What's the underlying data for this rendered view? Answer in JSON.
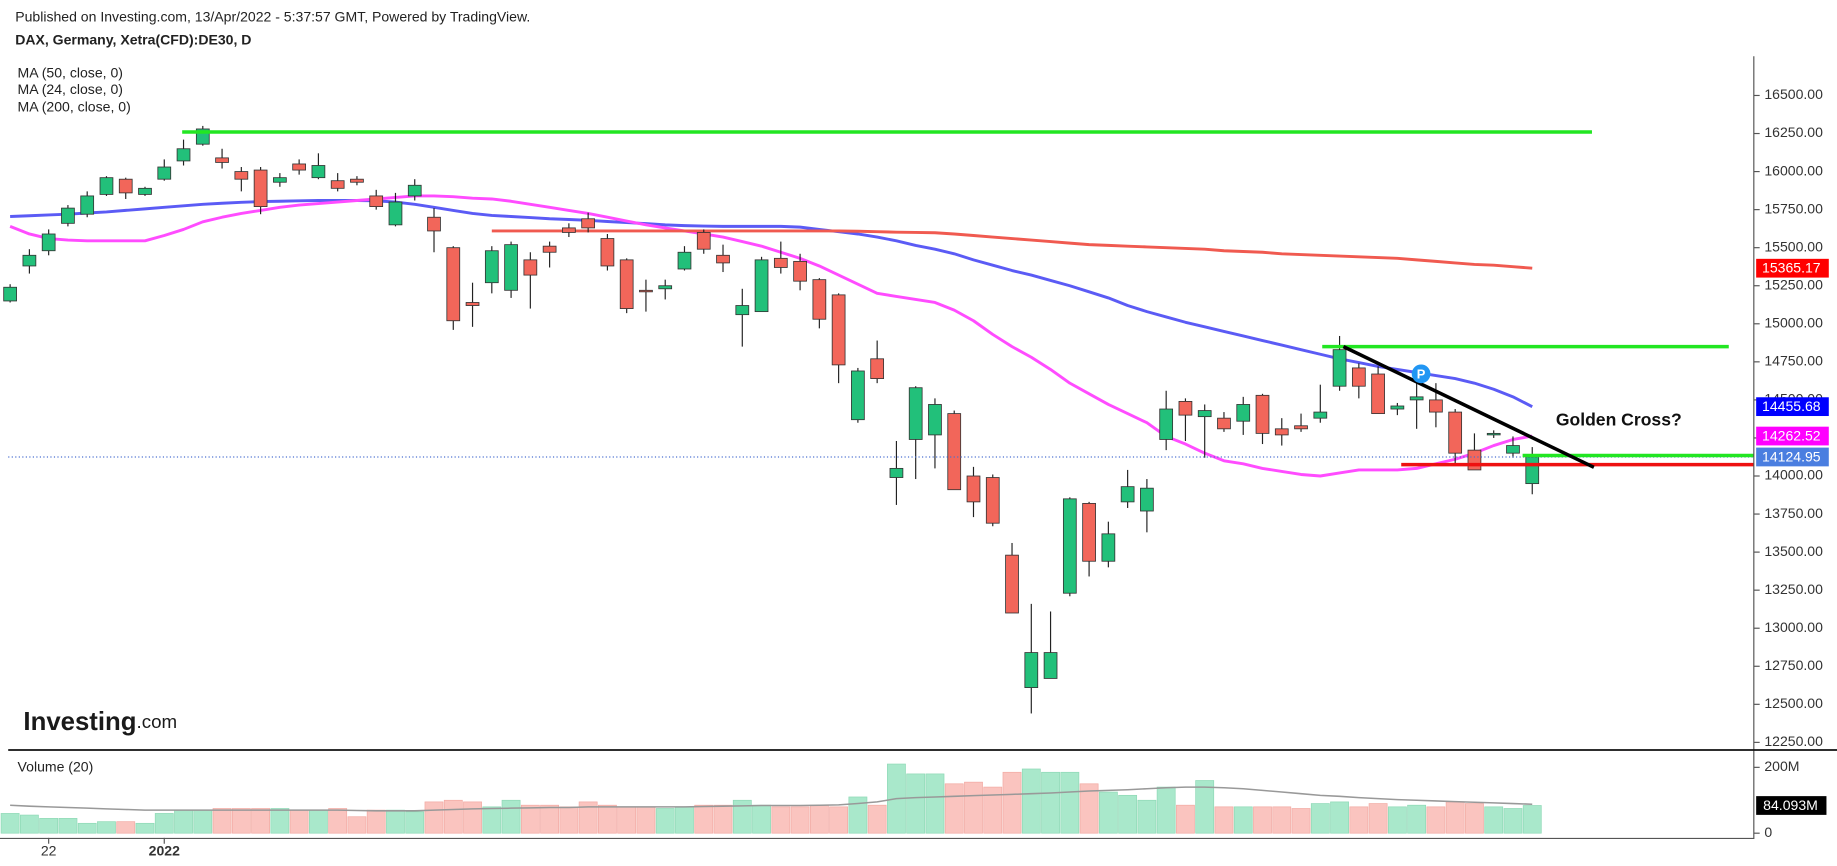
{
  "chart_data": [
    {
      "type": "candlestick",
      "subtitle": "Published on Investing.com, 13/Apr/2022 - 5:37:57 GMT, Powered by TradingView.",
      "title": "DAX, Germany, Xetra(CFD):DE30, D",
      "logo": [
        "Investing",
        ".com"
      ],
      "categories": [
        null,
        null,
        "22",
        null,
        null,
        null,
        null,
        null,
        "2022",
        null,
        null,
        null,
        null,
        null,
        null,
        null,
        null,
        null,
        null,
        null,
        null,
        null,
        null,
        null,
        null,
        null,
        null,
        null,
        null,
        null,
        null,
        null,
        null,
        null,
        null,
        null,
        null,
        null,
        null,
        null,
        null,
        null,
        null,
        null,
        null,
        null,
        null,
        null,
        null,
        null,
        null,
        null,
        null,
        null,
        null,
        null,
        null,
        null,
        null,
        null,
        null,
        null,
        null,
        null,
        null,
        null,
        null,
        null,
        null,
        null,
        null,
        null,
        null,
        null,
        null,
        null,
        null,
        null,
        null,
        null
      ],
      "xlim": [
        -0.1,
        90.5
      ],
      "ylim": [
        12200,
        16750
      ],
      "yticks": [
        {
          "value": 12250,
          "label": "12250.00"
        },
        {
          "value": 12500,
          "label": "12500.00"
        },
        {
          "value": 12750,
          "label": "12750.00"
        },
        {
          "value": 13000,
          "label": "13000.00"
        },
        {
          "value": 13250,
          "label": "13250.00"
        },
        {
          "value": 13500,
          "label": "13500.00"
        },
        {
          "value": 13750,
          "label": "13750.00"
        },
        {
          "value": 14000,
          "label": "14000.00"
        },
        {
          "value": 14250,
          "label": "14250.00"
        },
        {
          "value": 14500,
          "label": "14500.00"
        },
        {
          "value": 14750,
          "label": "14750.00"
        },
        {
          "value": 15000,
          "label": "15000.00"
        },
        {
          "value": 15250,
          "label": "15250.00"
        },
        {
          "value": 15500,
          "label": "15500.00"
        },
        {
          "value": 15750,
          "label": "15750.00"
        },
        {
          "value": 16000,
          "label": "16000.00"
        },
        {
          "value": 16250,
          "label": "16250.00"
        },
        {
          "value": 16500,
          "label": "16500.00"
        }
      ],
      "open": [
        15150,
        15380,
        15480,
        15660,
        15720,
        15850,
        15950,
        15850,
        15950,
        16070,
        16180,
        16090,
        16000,
        16010,
        15930,
        16050,
        15960,
        15940,
        15950,
        15840,
        15650,
        15840,
        15700,
        15500,
        15140,
        15270,
        15220,
        15420,
        15510,
        15630,
        15690,
        15560,
        15420,
        15220,
        15230,
        15360,
        15600,
        15450,
        15060,
        15080,
        15430,
        15410,
        15290,
        15190,
        14370,
        14770,
        13990,
        14240,
        14270,
        14410,
        14000,
        13990,
        13480,
        12610,
        12670,
        13230,
        13820,
        13440,
        13830,
        13770,
        14240,
        14490,
        14390,
        14380,
        14360,
        14530,
        14310,
        14330,
        14380,
        14590,
        14710,
        14670,
        14440,
        14500,
        14500,
        14420,
        14170,
        14270,
        14150,
        13950
      ],
      "high": [
        15260,
        15490,
        15620,
        15780,
        15870,
        15970,
        15960,
        15900,
        16080,
        16210,
        16300,
        16150,
        16030,
        16030,
        15990,
        16080,
        16120,
        15990,
        15970,
        15880,
        15860,
        15950,
        15760,
        15510,
        15270,
        15510,
        15540,
        15470,
        15540,
        15660,
        15730,
        15590,
        15430,
        15290,
        15290,
        15510,
        15620,
        15520,
        15230,
        15440,
        15540,
        15460,
        15300,
        15200,
        14710,
        14890,
        14230,
        14590,
        14510,
        14430,
        14060,
        14010,
        13560,
        13160,
        13110,
        13860,
        13830,
        13700,
        14040,
        13980,
        14560,
        14510,
        14470,
        14420,
        14520,
        14540,
        14380,
        14410,
        14600,
        14920,
        14740,
        14720,
        14480,
        14620,
        14610,
        14440,
        14280,
        14300,
        14260,
        14190
      ],
      "low": [
        15140,
        15330,
        15450,
        15640,
        15700,
        15840,
        15820,
        15840,
        15940,
        16040,
        16170,
        16020,
        15870,
        15720,
        15900,
        15980,
        15950,
        15870,
        15910,
        15750,
        15640,
        15810,
        15470,
        14960,
        14980,
        15200,
        15170,
        15100,
        15370,
        15570,
        15600,
        15350,
        15070,
        15080,
        15160,
        15350,
        15460,
        15340,
        14850,
        15080,
        15330,
        15220,
        14970,
        14610,
        14350,
        14610,
        13810,
        13980,
        14050,
        13910,
        13730,
        13670,
        13100,
        12440,
        12670,
        13210,
        13340,
        13400,
        13790,
        13630,
        14170,
        14230,
        14120,
        14290,
        14270,
        14210,
        14200,
        14290,
        14350,
        14560,
        14510,
        14410,
        14400,
        14310,
        14320,
        14070,
        14040,
        14250,
        14120,
        13880
      ],
      "close": [
        15240,
        15450,
        15590,
        15760,
        15840,
        15960,
        15860,
        15890,
        16030,
        16150,
        16280,
        16060,
        15950,
        15770,
        15960,
        16010,
        16040,
        15890,
        15930,
        15770,
        15800,
        15910,
        15610,
        15020,
        15120,
        15480,
        15520,
        15320,
        15470,
        15600,
        15630,
        15380,
        15100,
        15210,
        15250,
        15470,
        15490,
        15400,
        15120,
        15420,
        15370,
        15280,
        15030,
        14730,
        14690,
        14640,
        14050,
        14580,
        14470,
        13910,
        13830,
        13690,
        13100,
        12840,
        12840,
        13850,
        13440,
        13620,
        13930,
        13920,
        14440,
        14400,
        14430,
        14310,
        14470,
        14280,
        14270,
        14310,
        14420,
        14830,
        14590,
        14410,
        14460,
        14520,
        14420,
        14150,
        14040,
        14280,
        14200,
        14124.95
      ],
      "up_color": "#22c07a",
      "down_color": "#f2665a",
      "wick_color": "#222222",
      "series": [
        {
          "name": "MA (50, close, 0)",
          "color": "#5b5bf5",
          "values": [
            15705,
            15710,
            15715,
            15720,
            15728,
            15735,
            15745,
            15755,
            15765,
            15775,
            15785,
            15792,
            15798,
            15803,
            15805,
            15808,
            15810,
            15810,
            15810,
            15808,
            15800,
            15785,
            15765,
            15745,
            15725,
            15712,
            15705,
            15698,
            15690,
            15685,
            15680,
            15672,
            15665,
            15658,
            15650,
            15645,
            15642,
            15640,
            15640,
            15640,
            15640,
            15635,
            15620,
            15605,
            15590,
            15570,
            15545,
            15515,
            15490,
            15460,
            15420,
            15385,
            15350,
            15320,
            15285,
            15250,
            15210,
            15170,
            15120,
            15080,
            15045,
            15010,
            14980,
            14950,
            14920,
            14890,
            14860,
            14830,
            14800,
            14770,
            14745,
            14720,
            14700,
            14680,
            14660,
            14640,
            14610,
            14570,
            14520,
            14455.68
          ]
        },
        {
          "name": "MA (24, close, 0)",
          "color": "#ff4cff",
          "values": [
            15640,
            15590,
            15560,
            15550,
            15545,
            15545,
            15545,
            15545,
            15580,
            15620,
            15670,
            15700,
            15725,
            15745,
            15765,
            15780,
            15790,
            15800,
            15810,
            15820,
            15830,
            15840,
            15840,
            15835,
            15825,
            15820,
            15805,
            15785,
            15765,
            15745,
            15725,
            15700,
            15675,
            15650,
            15630,
            15610,
            15590,
            15570,
            15540,
            15510,
            15470,
            15430,
            15380,
            15320,
            15260,
            15200,
            15180,
            15160,
            15140,
            15090,
            15020,
            14930,
            14850,
            14780,
            14700,
            14610,
            14540,
            14470,
            14410,
            14350,
            14260,
            14210,
            14150,
            14100,
            14080,
            14050,
            14030,
            14010,
            14000,
            14020,
            14040,
            14040,
            14040,
            14050,
            14080,
            14110,
            14150,
            14200,
            14240,
            14262.52
          ]
        },
        {
          "name": "MA (200, close, 0)",
          "color": "#f05a50",
          "values": [
            null,
            null,
            null,
            null,
            null,
            null,
            null,
            null,
            null,
            null,
            null,
            null,
            null,
            null,
            null,
            null,
            null,
            null,
            null,
            null,
            null,
            null,
            null,
            null,
            null,
            15610,
            15610,
            15610,
            15610,
            15610,
            15610,
            15610,
            15610,
            15610,
            15610,
            15610,
            15610,
            15610,
            15610,
            15610,
            15610,
            15610,
            15610,
            15610,
            15608,
            15605,
            15602,
            15600,
            15598,
            15590,
            15580,
            15570,
            15560,
            15550,
            15540,
            15530,
            15520,
            15515,
            15510,
            15505,
            15500,
            15495,
            15490,
            15480,
            15475,
            15470,
            15460,
            15455,
            15450,
            15445,
            15440,
            15435,
            15430,
            15420,
            15410,
            15400,
            15390,
            15385,
            15375,
            15365.17
          ]
        }
      ],
      "price_tags": [
        {
          "value": 15365.17,
          "color": "#ff0000"
        },
        {
          "value": 14455.68,
          "color": "#0000ff"
        },
        {
          "value": 14262.52,
          "color": "#ff00ff"
        },
        {
          "value": 14124.95,
          "color": "#4a7ee0"
        }
      ],
      "last_line_color": "#4a6fd0",
      "hlines": [
        {
          "value": 16260,
          "x": [
            8.93,
            82.1
          ],
          "color": "#22e622"
        },
        {
          "value": 14850,
          "x": [
            68.1,
            89.2
          ],
          "color": "#22e622"
        },
        {
          "value": 14135,
          "x": [
            78.5,
            90.5
          ],
          "color": "#22e622"
        },
        {
          "value": 14075,
          "x": [
            72.2,
            90.5
          ],
          "color": "#ee1111"
        }
      ],
      "trendline": {
        "x": [
          69.2,
          82.2
        ],
        "y": [
          14850,
          14057
        ],
        "color": "#000000"
      },
      "annotation": "Golden Cross?",
      "marker_label": "P"
    },
    {
      "type": "bar",
      "title": "Volume (20)",
      "ylim": [
        0,
        210000000
      ],
      "yticks": [
        {
          "value": 200000000,
          "label": "200M"
        },
        0
      ],
      "values": [
        60000000,
        55000000,
        45000000,
        45000000,
        30000000,
        35000000,
        35000000,
        30000000,
        60000000,
        70000000,
        70000000,
        75000000,
        75000000,
        75000000,
        75000000,
        70000000,
        70000000,
        75000000,
        50000000,
        70000000,
        70000000,
        65000000,
        95000000,
        100000000,
        95000000,
        80000000,
        100000000,
        85000000,
        85000000,
        80000000,
        95000000,
        85000000,
        80000000,
        80000000,
        75000000,
        80000000,
        85000000,
        85000000,
        100000000,
        85000000,
        80000000,
        80000000,
        85000000,
        80000000,
        110000000,
        85000000,
        210000000,
        180000000,
        180000000,
        150000000,
        155000000,
        140000000,
        185000000,
        195000000,
        185000000,
        185000000,
        150000000,
        125000000,
        115000000,
        100000000,
        140000000,
        85000000,
        160000000,
        80000000,
        80000000,
        80000000,
        80000000,
        75000000,
        90000000,
        95000000,
        80000000,
        90000000,
        80000000,
        85000000,
        80000000,
        95000000,
        90000000,
        80000000,
        75000000,
        84093000
      ],
      "ma": [
        85000000,
        82000000,
        80000000,
        78000000,
        76000000,
        74000000,
        72000000,
        70000000,
        70000000,
        70000000,
        70000000,
        70000000,
        70000000,
        70000000,
        70000000,
        70000000,
        70000000,
        70000000,
        69000000,
        68000000,
        68000000,
        68000000,
        70000000,
        72000000,
        74000000,
        75000000,
        76000000,
        77000000,
        78000000,
        78000000,
        80000000,
        80000000,
        80000000,
        80000000,
        80000000,
        80000000,
        81000000,
        82000000,
        83000000,
        84000000,
        84000000,
        84000000,
        85000000,
        86000000,
        90000000,
        95000000,
        105000000,
        108000000,
        110000000,
        112000000,
        114000000,
        116000000,
        118000000,
        120000000,
        122000000,
        125000000,
        128000000,
        130000000,
        132000000,
        135000000,
        138000000,
        140000000,
        140000000,
        138000000,
        135000000,
        130000000,
        125000000,
        120000000,
        115000000,
        112000000,
        108000000,
        105000000,
        102000000,
        100000000,
        98000000,
        96000000,
        94000000,
        92000000,
        90000000,
        88000000
      ],
      "up_color": "#a9e8cb",
      "down_color": "#fac4bf",
      "ma_color": "#999999",
      "last_value": {
        "value": 84093000,
        "label": "84.093M"
      }
    }
  ]
}
